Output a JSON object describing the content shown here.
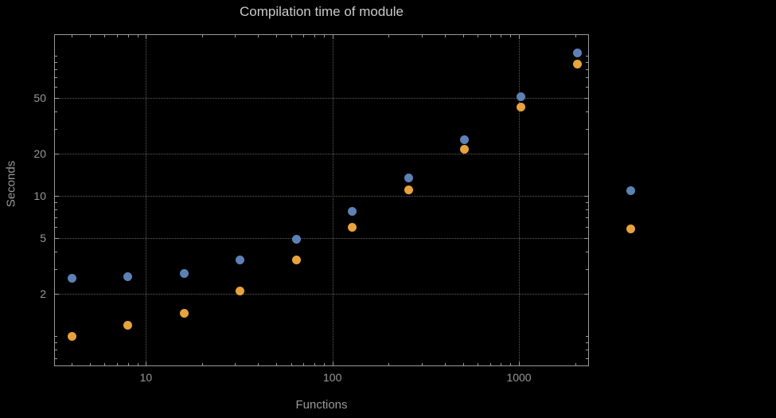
{
  "colors": {
    "background": "#000000",
    "frame": "#9a9a9a",
    "grid": "#5e5e5e",
    "tick_label": "#999999",
    "title_text": "#c9c9c9",
    "axis_label": "#999999",
    "series_blue": "#5e81b5",
    "series_orange": "#e8a33d"
  },
  "chart_data": {
    "type": "scatter",
    "title": "Compilation time of module",
    "xlabel": "Functions",
    "ylabel": "Seconds",
    "x_scale": "log",
    "y_scale": "log",
    "grid": "dotted",
    "x": [
      4,
      8,
      16,
      32,
      64,
      128,
      256,
      512,
      1024,
      2048
    ],
    "series": [
      {
        "name": "blue",
        "color": "#5e81b5",
        "values": [
          2.6,
          2.65,
          2.8,
          3.5,
          4.9,
          7.8,
          13.5,
          25,
          51,
          105
        ]
      },
      {
        "name": "orange",
        "color": "#e8a33d",
        "values": [
          1.0,
          1.2,
          1.45,
          2.1,
          3.5,
          6.0,
          11,
          21.5,
          43,
          87
        ]
      }
    ],
    "x_ticks": [
      10,
      100,
      1000
    ],
    "y_ticks": [
      2,
      5,
      10,
      20,
      50
    ],
    "xlim": [
      3.25,
      2350
    ],
    "ylim": [
      0.62,
      140
    ],
    "legend": {
      "position": "right-outside",
      "markers": [
        "blue",
        "orange"
      ],
      "labels_visible": false
    }
  }
}
